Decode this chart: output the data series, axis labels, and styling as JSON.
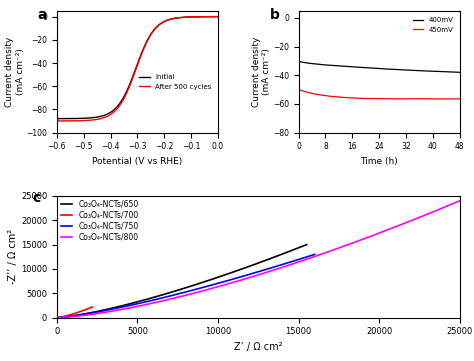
{
  "panel_a": {
    "label": "a",
    "xlabel": "Potential (V vs RHE)",
    "ylabel": "Current density\n(mA cm⁻²)",
    "xlim": [
      -0.6,
      0.0
    ],
    "ylim": [
      -100,
      5
    ],
    "xticks": [
      -0.6,
      -0.5,
      -0.4,
      -0.3,
      -0.2,
      -0.1,
      0.0
    ],
    "yticks": [
      -100,
      -80,
      -60,
      -40,
      -20,
      0
    ],
    "legend": [
      "Initial",
      "After 500 cycles"
    ],
    "line_colors": [
      "black",
      "red"
    ]
  },
  "panel_b": {
    "label": "b",
    "xlabel": "Time (h)",
    "ylabel": "Current density\n(mA cm⁻²)",
    "xlim": [
      0,
      48
    ],
    "ylim": [
      -80,
      5
    ],
    "xticks": [
      0,
      8,
      16,
      24,
      32,
      40,
      48
    ],
    "yticks": [
      -80,
      -60,
      -40,
      -20,
      0
    ],
    "legend": [
      "400mV",
      "450mV"
    ],
    "line_colors": [
      "black",
      "red"
    ]
  },
  "panel_c": {
    "label": "c",
    "xlabel": "Z’ / Ω cm²",
    "ylabel": "-Z’’ / Ω cm²",
    "xlim": [
      0,
      25000
    ],
    "ylim": [
      0,
      25000
    ],
    "xticks": [
      0,
      5000,
      10000,
      15000,
      20000,
      25000
    ],
    "yticks": [
      0,
      5000,
      10000,
      15000,
      20000,
      25000
    ],
    "legend": [
      "Co₃O₄-NCTs/650",
      "Co₃O₄-NCTs/700",
      "Co₃O₄-NCTs/750",
      "Co₃O₄-NCTs/800"
    ],
    "line_colors": [
      "black",
      "red",
      "blue",
      "magenta"
    ]
  },
  "background_color": "#ffffff"
}
